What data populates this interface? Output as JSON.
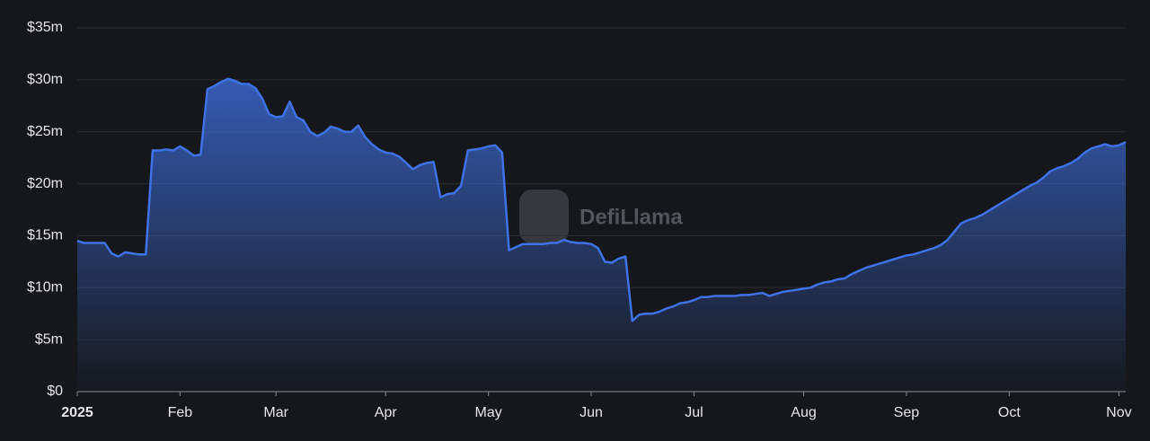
{
  "chart_data": {
    "type": "area",
    "watermark": "DefiLlama",
    "color": "#3f72e6",
    "categories": [
      "2025",
      null,
      null,
      null,
      null,
      null,
      null,
      null,
      null,
      null,
      null,
      null,
      null,
      null,
      null,
      "Feb",
      null,
      null,
      null,
      null,
      null,
      null,
      null,
      null,
      null,
      null,
      null,
      null,
      null,
      "Mar",
      null,
      null,
      null,
      null,
      null,
      null,
      null,
      null,
      null,
      null,
      null,
      null,
      null,
      null,
      null,
      "Apr",
      null,
      null,
      null,
      null,
      null,
      null,
      null,
      null,
      null,
      null,
      null,
      null,
      null,
      null,
      "May",
      null,
      null,
      null,
      null,
      null,
      null,
      null,
      null,
      null,
      null,
      null,
      null,
      null,
      null,
      "Jun",
      null,
      null,
      null,
      null,
      null,
      null,
      null,
      null,
      null,
      null,
      null,
      null,
      null,
      null,
      "Jul",
      null,
      null,
      null,
      null,
      null,
      null,
      null,
      null,
      null,
      null,
      null,
      null,
      null,
      null,
      null,
      "Aug",
      null,
      null,
      null,
      null,
      null,
      null,
      null,
      null,
      null,
      null,
      null,
      null,
      null,
      null,
      "Sep",
      null,
      null,
      null,
      null,
      null,
      null,
      null,
      null,
      null,
      null,
      null,
      null,
      null,
      null,
      "Oct",
      null,
      null,
      null,
      null,
      null,
      null,
      null,
      null,
      null,
      null,
      null,
      null,
      null,
      null,
      null,
      "Nov",
      null
    ],
    "values": [
      14.5,
      14.3,
      14.3,
      14.3,
      14.3,
      13.3,
      13.0,
      13.4,
      13.3,
      13.2,
      13.2,
      23.2,
      23.2,
      23.3,
      23.2,
      23.6,
      23.2,
      22.7,
      22.8,
      29.1,
      29.4,
      29.8,
      30.1,
      29.9,
      29.6,
      29.6,
      29.2,
      28.2,
      26.7,
      26.4,
      26.5,
      27.9,
      26.4,
      26.1,
      25.0,
      24.6,
      24.9,
      25.5,
      25.3,
      25.0,
      25.0,
      25.6,
      24.5,
      23.8,
      23.3,
      23.0,
      22.9,
      22.6,
      22.0,
      21.4,
      21.8,
      22.0,
      22.1,
      18.7,
      19.0,
      19.1,
      19.8,
      23.2,
      23.3,
      23.4,
      23.6,
      23.7,
      23.0,
      13.6,
      13.9,
      14.2,
      14.2,
      14.2,
      14.2,
      14.3,
      14.3,
      14.6,
      14.4,
      14.3,
      14.3,
      14.2,
      13.8,
      12.5,
      12.4,
      12.8,
      13.0,
      6.8,
      7.4,
      7.5,
      7.5,
      7.7,
      8.0,
      8.2,
      8.5,
      8.6,
      8.8,
      9.1,
      9.1,
      9.2,
      9.2,
      9.2,
      9.2,
      9.3,
      9.3,
      9.4,
      9.5,
      9.2,
      9.4,
      9.6,
      9.7,
      9.8,
      9.9,
      10.0,
      10.3,
      10.5,
      10.6,
      10.8,
      10.9,
      11.3,
      11.6,
      11.9,
      12.1,
      12.3,
      12.5,
      12.7,
      12.9,
      13.1,
      13.2,
      13.4,
      13.6,
      13.8,
      14.1,
      14.6,
      15.4,
      16.2,
      16.5,
      16.7,
      17.0,
      17.4,
      17.8,
      18.2,
      18.6,
      19.0,
      19.4,
      19.8,
      20.1,
      20.6,
      21.2,
      21.5,
      21.7,
      22.0,
      22.4,
      23.0,
      23.4,
      23.6,
      23.8,
      23.6,
      23.7,
      24.0
    ],
    "ylim": [
      0,
      35
    ],
    "yticks": [
      {
        "value": 0,
        "label": "$0"
      },
      {
        "value": 5,
        "label": "$5m"
      },
      {
        "value": 10,
        "label": "$10m"
      },
      {
        "value": 15,
        "label": "$15m"
      },
      {
        "value": 20,
        "label": "$20m"
      },
      {
        "value": 25,
        "label": "$25m"
      },
      {
        "value": 30,
        "label": "$30m"
      },
      {
        "value": 35,
        "label": "$35m"
      }
    ],
    "grid": true
  }
}
